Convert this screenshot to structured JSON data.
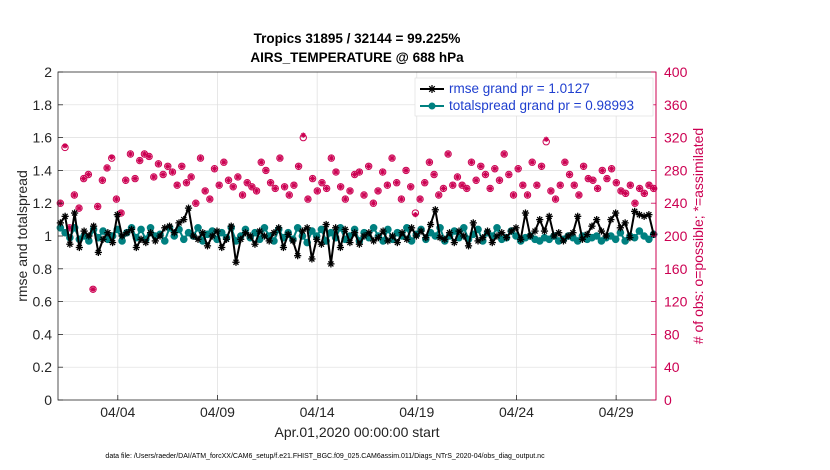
{
  "title_line1": "Tropics 31895 / 32144 = 99.225%",
  "title_line2": "AIRS_TEMPERATURE @ 688 hPa",
  "footer": "data file: /Users/raeder/DAI/ATM_forcXX/CAM6_setup/f.e21.FHIST_BGC.f09_025.CAM6assim.011/Diags_NTrS_2020-04/obs_diag_output.nc",
  "colors": {
    "rmse": "#000000",
    "spread": "#008080",
    "obs": "#cc0052",
    "grid": "#dddddd"
  },
  "chart_data": {
    "type": "line",
    "xlabel": "Apr.01,2020 00:00:00 start",
    "ylabel_left": "rmse and totalspread",
    "ylabel_right": "# of obs: o=possible; *=assimilated",
    "x_range": [
      0,
      30
    ],
    "ylim_left": [
      0,
      2
    ],
    "ylim_right": [
      0,
      400
    ],
    "xticks": [
      {
        "label": "04/04",
        "day": 3
      },
      {
        "label": "04/09",
        "day": 8
      },
      {
        "label": "04/14",
        "day": 13
      },
      {
        "label": "04/19",
        "day": 18
      },
      {
        "label": "04/24",
        "day": 23
      },
      {
        "label": "04/29",
        "day": 28
      }
    ],
    "yticks_left": [
      "0",
      "0.2",
      "0.4",
      "0.6",
      "0.8",
      "1",
      "1.2",
      "1.4",
      "1.6",
      "1.8",
      "2"
    ],
    "yticks_right": [
      "0",
      "40",
      "80",
      "120",
      "160",
      "200",
      "240",
      "280",
      "320",
      "360",
      "400"
    ],
    "grid": true,
    "legend_position": "top-right",
    "series": [
      {
        "name": "rmse grand pr = 1.0127",
        "axis": "left",
        "marker": "asterisk",
        "values": [
          1.08,
          1.12,
          0.95,
          1.14,
          0.93,
          1.03,
          1.0,
          1.06,
          0.9,
          0.98,
          1.02,
          0.96,
          1.13,
          1.0,
          1.02,
          1.04,
          0.93,
          0.98,
          0.96,
          1.02,
          0.97,
          1.0,
          1.05,
          1.06,
          1.02,
          1.08,
          1.1,
          1.17,
          1.0,
          0.98,
          1.02,
          0.94,
          1.0,
          1.03,
          0.93,
          0.98,
          1.06,
          0.84,
          0.98,
          1.02,
          1.0,
          0.95,
          1.03,
          1.0,
          0.97,
          1.02,
          1.05,
          0.93,
          1.01,
          0.97,
          0.88,
          1.03,
          1.05,
          0.86,
          0.98,
          0.95,
          1.07,
          0.83,
          1.05,
          0.93,
          1.04,
          0.96,
          1.02,
          0.95,
          1.0,
          1.02,
          0.97,
          0.99,
          1.03,
          0.97,
          1.0,
          0.96,
          1.02,
          0.98,
          1.05,
          1.0,
          1.03,
          0.99,
          1.07,
          1.16,
          0.99,
          0.98,
          1.02,
          0.96,
          1.03,
          1.0,
          0.94,
          1.08,
          0.97,
          0.99,
          1.03,
          0.96,
          1.0,
          1.02,
          0.99,
          1.03,
          1.05,
          0.98,
          1.14,
          1.0,
          1.03,
          1.1,
          1.03,
          1.12,
          1.0,
          1.02,
          0.97,
          1.0,
          1.02,
          1.12,
          0.98,
          1.01,
          1.06,
          1.1,
          1.03,
          1.0,
          1.1,
          1.14,
          1.05,
          1.08,
          0.99,
          1.15,
          1.13,
          1.12,
          1.13,
          1.01
        ]
      },
      {
        "name": "totalspread grand pr = 0.98993",
        "axis": "left",
        "marker": "dot",
        "values": [
          1.05,
          1.02,
          0.99,
          1.05,
          0.98,
          1.0,
          0.97,
          1.04,
          0.99,
          1.03,
          0.98,
          1.0,
          1.04,
          0.97,
          1.02,
          1.05,
          0.99,
          1.04,
          0.98,
          1.05,
          1.0,
          1.01,
          0.97,
          1.05,
          1.0,
          1.04,
          0.98,
          1.02,
          1.0,
          1.05,
          0.97,
          1.01,
          1.03,
          0.98,
          1.02,
          0.99,
          1.05,
          0.97,
          1.0,
          1.04,
          0.99,
          1.02,
          0.98,
          1.05,
          1.0,
          0.97,
          1.04,
          0.99,
          1.02,
          0.98,
          1.05,
          1.0,
          0.96,
          1.03,
          1.0,
          1.04,
          0.97,
          1.02,
          0.99,
          1.05,
          0.98,
          1.0,
          1.04,
          0.97,
          1.02,
          0.99,
          1.05,
          1.0,
          0.97,
          1.04,
          0.98,
          1.02,
          1.0,
          1.05,
          0.97,
          1.01,
          1.04,
          0.98,
          1.02,
          1.0,
          1.05,
          0.97,
          1.0,
          1.03,
          0.99,
          1.05,
          0.98,
          1.01,
          1.04,
          0.97,
          1.02,
          1.0,
          1.05,
          0.98,
          0.99,
          1.03,
          1.0,
          0.97,
          0.99,
          1.0,
          0.98,
          0.97,
          0.99,
          0.98,
          1.0,
          0.97,
          0.98,
          1.0,
          0.99,
          0.97,
          1.0,
          0.98,
          0.99,
          1.0,
          0.97,
          0.99,
          1.0,
          0.98,
          1.02,
          0.97,
          1.0,
          0.99,
          1.03,
          1.0,
          0.98,
          1.01
        ]
      },
      {
        "name": "obs possible",
        "axis": "right",
        "marker": "circle",
        "values": [
          240,
          308,
          210,
          250,
          234,
          270,
          275,
          135,
          236,
          268,
          283,
          295,
          245,
          228,
          268,
          300,
          270,
          292,
          300,
          297,
          272,
          288,
          275,
          285,
          278,
          262,
          285,
          265,
          272,
          240,
          295,
          255,
          245,
          282,
          262,
          290,
          268,
          260,
          272,
          250,
          265,
          260,
          255,
          290,
          280,
          265,
          258,
          295,
          260,
          250,
          262,
          285,
          320,
          245,
          270,
          255,
          265,
          258,
          295,
          278,
          260,
          245,
          255,
          275,
          278,
          250,
          285,
          240,
          255,
          278,
          262,
          295,
          265,
          245,
          280,
          260,
          228,
          245,
          265,
          290,
          275,
          250,
          258,
          300,
          262,
          272,
          262,
          258,
          290,
          268,
          285,
          275,
          258,
          282,
          268,
          300,
          275,
          250,
          282,
          262,
          250,
          290,
          262,
          285,
          315,
          255,
          245,
          262,
          290,
          275,
          262,
          250,
          285,
          270,
          268,
          258,
          280,
          270,
          282,
          265,
          255,
          252,
          262,
          240,
          258,
          252,
          262,
          258
        ]
      },
      {
        "name": "obs assimilated",
        "axis": "right",
        "marker": "asterisk",
        "values": [
          240,
          310,
          210,
          250,
          234,
          270,
          275,
          135,
          236,
          268,
          283,
          296,
          245,
          228,
          268,
          300,
          270,
          292,
          300,
          297,
          272,
          288,
          275,
          285,
          278,
          262,
          285,
          265,
          272,
          240,
          295,
          255,
          245,
          282,
          262,
          290,
          268,
          260,
          272,
          250,
          265,
          260,
          255,
          290,
          280,
          265,
          258,
          295,
          260,
          250,
          262,
          285,
          323,
          245,
          270,
          255,
          265,
          258,
          295,
          278,
          260,
          245,
          255,
          275,
          278,
          250,
          285,
          240,
          255,
          278,
          262,
          295,
          265,
          245,
          280,
          260,
          226,
          245,
          265,
          290,
          275,
          250,
          258,
          300,
          262,
          272,
          262,
          258,
          290,
          268,
          285,
          275,
          258,
          282,
          268,
          300,
          275,
          250,
          282,
          262,
          250,
          290,
          262,
          285,
          318,
          255,
          245,
          262,
          290,
          275,
          262,
          250,
          285,
          270,
          268,
          258,
          280,
          270,
          282,
          265,
          255,
          252,
          262,
          240,
          258,
          252,
          262,
          258
        ]
      }
    ]
  }
}
